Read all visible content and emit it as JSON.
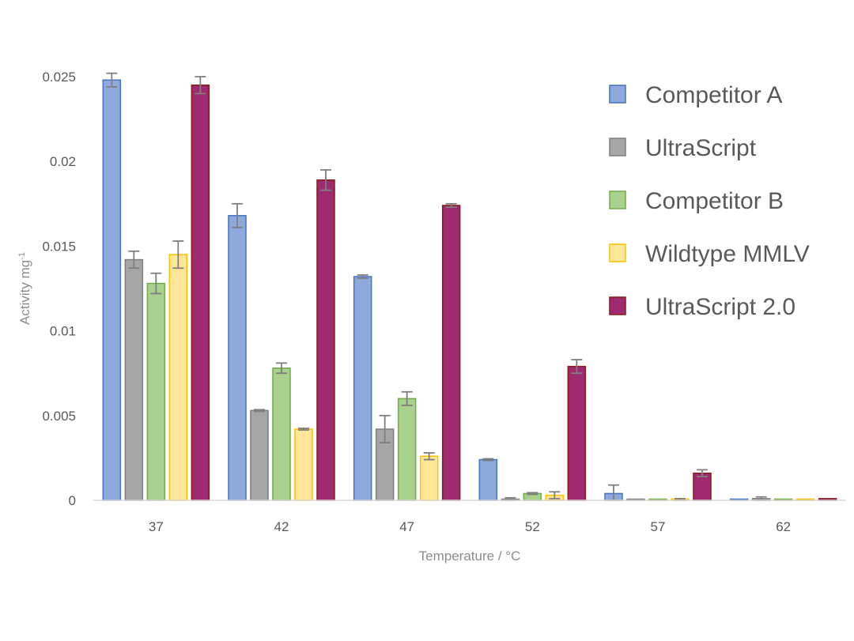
{
  "chart_data": {
    "type": "bar",
    "xlabel": "Temperature / °C",
    "ylabel": "Activity mg",
    "ylabel_sup": "-1",
    "categories": [
      "37",
      "42",
      "47",
      "52",
      "57",
      "62"
    ],
    "ylim": [
      0,
      0.025
    ],
    "yticks": [
      {
        "value": 0,
        "label": "0"
      },
      {
        "value": 0.005,
        "label": "0.005"
      },
      {
        "value": 0.01,
        "label": "0.01"
      },
      {
        "value": 0.015,
        "label": "0.015"
      },
      {
        "value": 0.02,
        "label": "0.02"
      },
      {
        "value": 0.025,
        "label": "0.025"
      }
    ],
    "grid": false,
    "legend_position": "right",
    "series": [
      {
        "name": "Competitor A",
        "color": "#8eaadc",
        "stroke": "#4472c4",
        "values": [
          0.0248,
          0.0168,
          0.0132,
          0.0024,
          0.0004,
          0.0
        ],
        "errors": [
          0.0004,
          0.0007,
          0.0001,
          5e-05,
          0.0005,
          0.0
        ]
      },
      {
        "name": "UltraScript",
        "color": "#a6a6a6",
        "stroke": "#7f7f7f",
        "values": [
          0.0142,
          0.0053,
          0.0042,
          5e-05,
          0.0,
          0.0001
        ],
        "errors": [
          0.0005,
          5e-05,
          0.0008,
          0.0001,
          0.0,
          0.0001
        ]
      },
      {
        "name": "Competitor B",
        "color": "#a9d18e",
        "stroke": "#70ad47",
        "values": [
          0.0128,
          0.0078,
          0.006,
          0.0004,
          0.0,
          0.0
        ],
        "errors": [
          0.0006,
          0.0003,
          0.0004,
          5e-05,
          0.0,
          0.0
        ]
      },
      {
        "name": "Wildtype MMLV",
        "color": "#ffe699",
        "stroke": "#ffc000",
        "values": [
          0.0145,
          0.0042,
          0.0026,
          0.0003,
          5e-05,
          0.0
        ],
        "errors": [
          0.0008,
          5e-05,
          0.0002,
          0.0002,
          5e-05,
          0.0
        ]
      },
      {
        "name": "UltraScript 2.0",
        "color": "#9e2a70",
        "stroke": "#8b1a1a",
        "values": [
          0.0245,
          0.0189,
          0.0174,
          0.0079,
          0.0016,
          0.0001
        ],
        "errors": [
          0.0005,
          0.0006,
          0.0001,
          0.0004,
          0.0002,
          0.0
        ]
      }
    ]
  }
}
